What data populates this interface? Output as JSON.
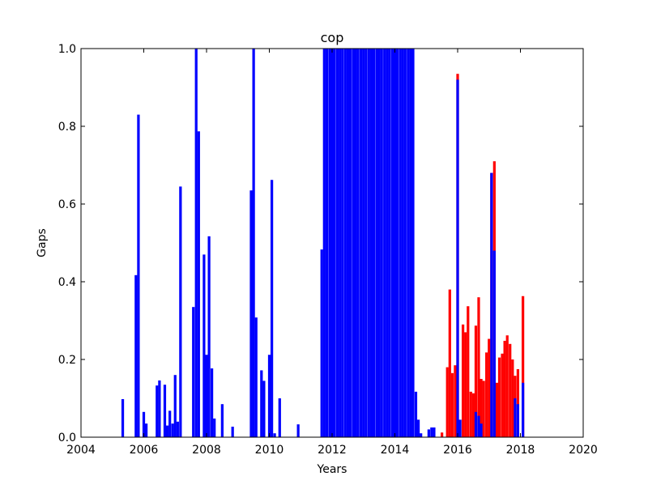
{
  "chart_data": {
    "type": "bar",
    "title": "cop",
    "xlabel": "Years",
    "ylabel": "Gaps",
    "xlim": [
      2004,
      2020
    ],
    "xticks": [
      2004,
      2006,
      2008,
      2010,
      2012,
      2014,
      2016,
      2018,
      2020
    ],
    "ylim": [
      0,
      1
    ],
    "yticks": [
      {
        "value": 0,
        "label": "0.0"
      },
      {
        "value": 0.2,
        "label": "0.2"
      },
      {
        "value": 0.4,
        "label": "0.4"
      },
      {
        "value": 0.6,
        "label": "0.6"
      },
      {
        "value": 0.8,
        "label": "0.8"
      },
      {
        "value": 1,
        "label": "1.0"
      }
    ],
    "bar_width": 0.0833,
    "series": [
      {
        "color": "#ff0000",
        "x": [
          2015.5,
          2015.67,
          2015.75,
          2015.83,
          2015.92,
          2016.0,
          2016.17,
          2016.25,
          2016.33,
          2016.42,
          2016.5,
          2016.58,
          2016.67,
          2016.75,
          2016.83,
          2016.92,
          2017.0,
          2017.08,
          2017.17,
          2017.25,
          2017.33,
          2017.42,
          2017.5,
          2017.58,
          2017.67,
          2017.75,
          2017.83,
          2017.92,
          2018.08
        ],
        "values": [
          0.012,
          0.18,
          0.38,
          0.165,
          0.185,
          0.935,
          0.29,
          0.27,
          0.337,
          0.117,
          0.113,
          0.287,
          0.36,
          0.15,
          0.145,
          0.218,
          0.253,
          0.68,
          0.71,
          0.14,
          0.205,
          0.215,
          0.248,
          0.262,
          0.24,
          0.2,
          0.158,
          0.175,
          0.363
        ]
      },
      {
        "color": "#0000ff",
        "x": [
          2005.33,
          2005.75,
          2005.83,
          2006.0,
          2006.08,
          2006.42,
          2006.5,
          2006.67,
          2006.75,
          2006.83,
          2006.92,
          2007.0,
          2007.08,
          2007.17,
          2007.58,
          2007.67,
          2007.75,
          2007.92,
          2008.0,
          2008.08,
          2008.17,
          2008.25,
          2008.5,
          2008.83,
          2009.42,
          2009.5,
          2009.58,
          2009.75,
          2009.83,
          2010.0,
          2010.08,
          2010.17,
          2010.33,
          2010.92,
          2011.67,
          2011.75,
          2011.83,
          2011.92,
          2012.0,
          2012.08,
          2012.17,
          2012.25,
          2012.33,
          2012.42,
          2012.5,
          2012.58,
          2012.67,
          2012.75,
          2012.83,
          2012.92,
          2013.0,
          2013.08,
          2013.17,
          2013.25,
          2013.33,
          2013.42,
          2013.5,
          2013.58,
          2013.67,
          2013.75,
          2013.83,
          2013.92,
          2014.0,
          2014.08,
          2014.17,
          2014.25,
          2014.33,
          2014.42,
          2014.5,
          2014.58,
          2014.67,
          2014.75,
          2014.83,
          2015.08,
          2015.17,
          2015.25,
          2016.0,
          2016.08,
          2016.58,
          2016.67,
          2016.75,
          2017.08,
          2017.17,
          2017.83,
          2017.92,
          2018.08
        ],
        "values": [
          0.098,
          0.417,
          0.83,
          0.065,
          0.035,
          0.133,
          0.146,
          0.135,
          0.03,
          0.068,
          0.035,
          0.16,
          0.04,
          0.645,
          0.335,
          1.0,
          0.787,
          0.47,
          0.212,
          0.517,
          0.177,
          0.048,
          0.085,
          0.027,
          0.635,
          1.0,
          0.308,
          0.172,
          0.145,
          0.212,
          0.662,
          0.01,
          0.1,
          0.033,
          0.483,
          1,
          1,
          1,
          1,
          1,
          1,
          1,
          1,
          1,
          1,
          1,
          1,
          1,
          1,
          1,
          1,
          1,
          1,
          1,
          1,
          1,
          1,
          1,
          1,
          1,
          1,
          1,
          1,
          1,
          1,
          1,
          1,
          1,
          1,
          1,
          0.117,
          0.045,
          0.01,
          0.02,
          0.025,
          0.025,
          0.92,
          0.045,
          0.065,
          0.055,
          0.035,
          0.68,
          0.48,
          0.1,
          0.085,
          0.14
        ]
      }
    ]
  }
}
